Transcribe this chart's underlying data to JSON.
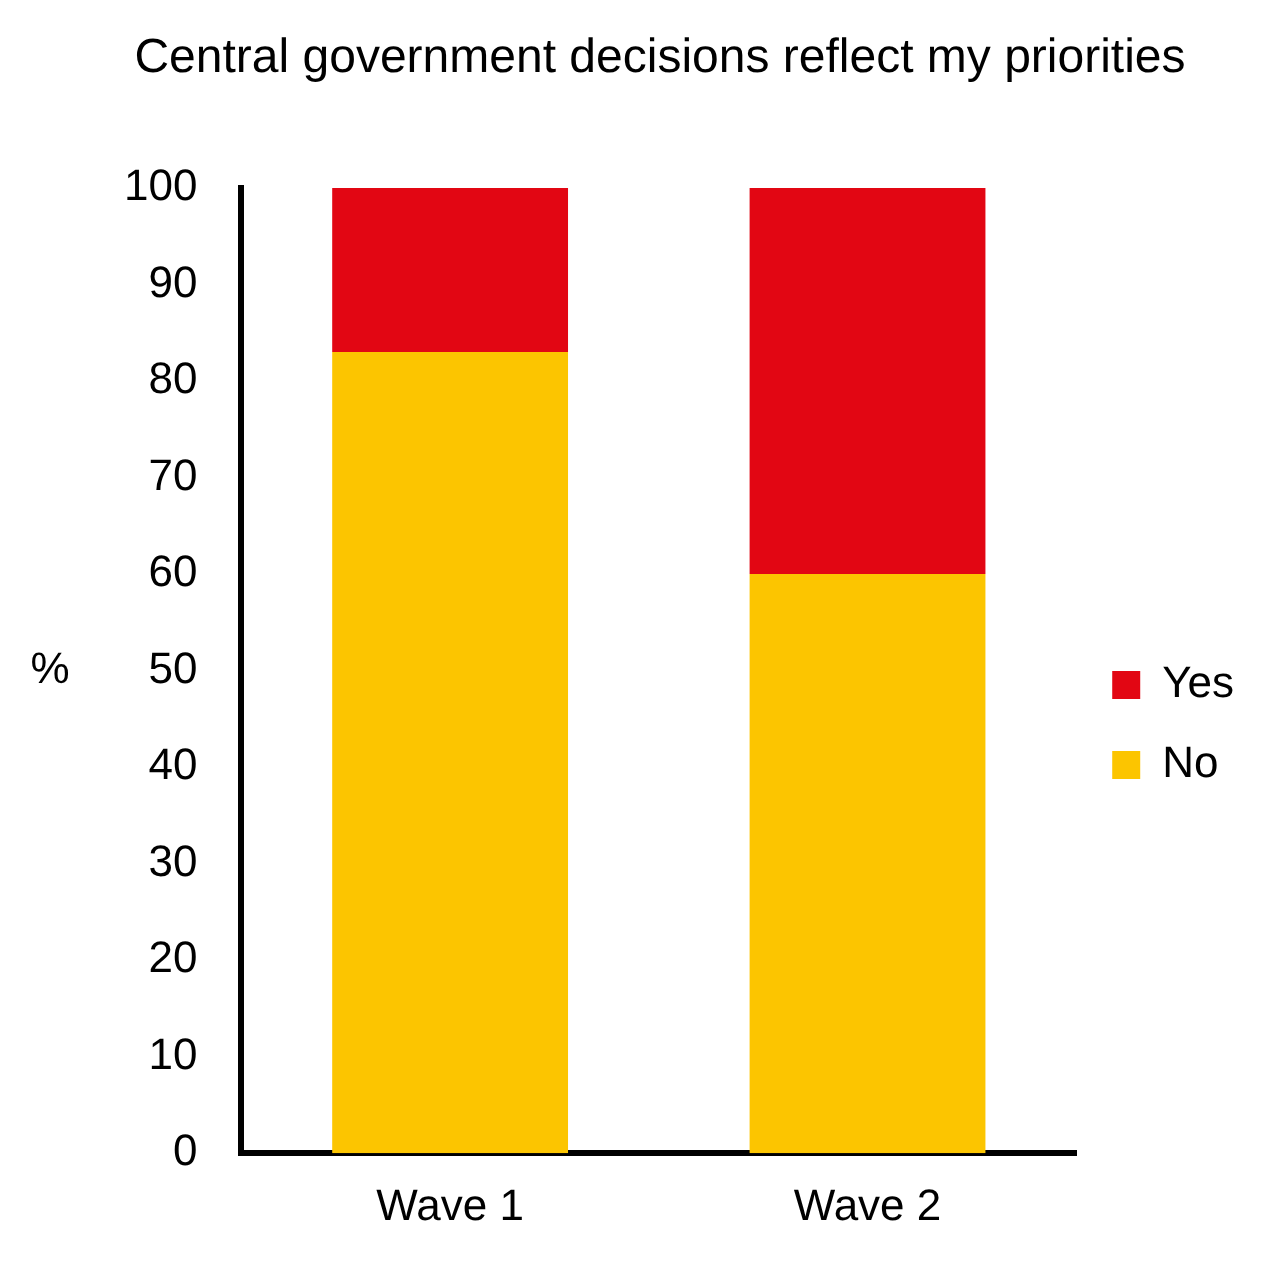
{
  "chart_data": {
    "type": "bar",
    "title": "Central government decisions reflect my priorities",
    "ylabel": "%",
    "categories": [
      "Wave 1",
      "Wave 2"
    ],
    "stacked": true,
    "series": [
      {
        "name": "No",
        "color": "#fcc500",
        "values": [
          83,
          60
        ]
      },
      {
        "name": "Yes",
        "color": "#e20613",
        "values": [
          17,
          40
        ]
      }
    ],
    "ylim": [
      0,
      100
    ],
    "yticks": [
      0,
      10,
      20,
      30,
      40,
      50,
      60,
      70,
      80,
      90,
      100
    ],
    "grid": false,
    "legend": "right"
  }
}
